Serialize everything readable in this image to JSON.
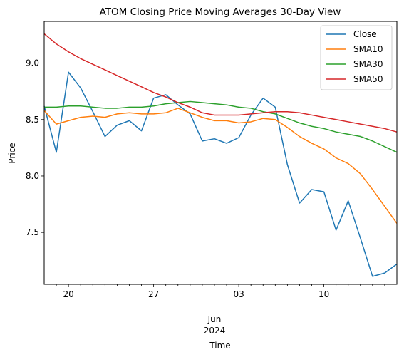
{
  "chart_data": {
    "type": "line",
    "title": "ATOM Closing Price Moving Averages 30-Day View",
    "xlabel": "Time",
    "ylabel": "Price",
    "x": [
      "2024-05-18",
      "2024-05-19",
      "2024-05-20",
      "2024-05-21",
      "2024-05-22",
      "2024-05-23",
      "2024-05-24",
      "2024-05-25",
      "2024-05-26",
      "2024-05-27",
      "2024-05-28",
      "2024-05-29",
      "2024-05-30",
      "2024-05-31",
      "2024-06-01",
      "2024-06-02",
      "2024-06-03",
      "2024-06-04",
      "2024-06-05",
      "2024-06-06",
      "2024-06-07",
      "2024-06-08",
      "2024-06-09",
      "2024-06-10",
      "2024-06-11",
      "2024-06-12",
      "2024-06-13",
      "2024-06-14",
      "2024-06-15",
      "2024-06-16"
    ],
    "xlim": [
      "2024-05-18",
      "2024-06-16"
    ],
    "ylim": [
      7.04,
      9.37
    ],
    "yticks": [
      7.5,
      8.0,
      8.5,
      9.0
    ],
    "ytick_labels": [
      "7.5",
      "8.0",
      "8.5",
      "9.0"
    ],
    "xticks_major": [
      {
        "date": "2024-05-20",
        "label": "20"
      },
      {
        "date": "2024-05-27",
        "label": "27"
      },
      {
        "date": "2024-06-03",
        "label": "03"
      },
      {
        "date": "2024-06-10",
        "label": "10"
      }
    ],
    "xticks_minor": [
      "2024-05-19",
      "2024-05-21",
      "2024-05-22",
      "2024-05-23",
      "2024-05-24",
      "2024-05-25",
      "2024-05-26",
      "2024-05-28",
      "2024-05-29",
      "2024-05-30",
      "2024-05-31",
      "2024-06-01",
      "2024-06-02",
      "2024-06-04",
      "2024-06-05",
      "2024-06-06",
      "2024-06-07",
      "2024-06-08",
      "2024-06-09",
      "2024-06-11",
      "2024-06-12",
      "2024-06-13",
      "2024-06-14",
      "2024-06-15"
    ],
    "x_secondary_label": [
      "Jun",
      "2024"
    ],
    "legend_position": "top-right",
    "grid": false,
    "series": [
      {
        "name": "Close",
        "color": "#1f77b4",
        "values": [
          8.62,
          8.21,
          8.92,
          8.78,
          8.57,
          8.35,
          8.45,
          8.49,
          8.4,
          8.69,
          8.72,
          8.63,
          8.55,
          8.31,
          8.33,
          8.29,
          8.34,
          8.54,
          8.69,
          8.61,
          8.1,
          7.76,
          7.88,
          7.86,
          7.52,
          7.78,
          7.45,
          7.11,
          7.14,
          7.22
        ]
      },
      {
        "name": "SMA10",
        "color": "#ff7f0e",
        "values": [
          8.58,
          8.46,
          8.49,
          8.52,
          8.53,
          8.52,
          8.55,
          8.56,
          8.55,
          8.55,
          8.56,
          8.6,
          8.56,
          8.52,
          8.49,
          8.49,
          8.47,
          8.48,
          8.51,
          8.5,
          8.43,
          8.35,
          8.29,
          8.24,
          8.16,
          8.11,
          8.02,
          7.88,
          7.73,
          7.58
        ]
      },
      {
        "name": "SMA30",
        "color": "#2ca02c",
        "values": [
          8.61,
          8.61,
          8.62,
          8.62,
          8.61,
          8.6,
          8.6,
          8.61,
          8.61,
          8.62,
          8.64,
          8.65,
          8.66,
          8.65,
          8.64,
          8.63,
          8.61,
          8.6,
          8.57,
          8.55,
          8.51,
          8.47,
          8.44,
          8.42,
          8.39,
          8.37,
          8.35,
          8.31,
          8.26,
          8.21
        ]
      },
      {
        "name": "SMA50",
        "color": "#d62728",
        "values": [
          9.26,
          9.17,
          9.1,
          9.04,
          8.99,
          8.94,
          8.89,
          8.84,
          8.79,
          8.74,
          8.7,
          8.65,
          8.61,
          8.56,
          8.54,
          8.54,
          8.54,
          8.55,
          8.56,
          8.57,
          8.57,
          8.56,
          8.54,
          8.52,
          8.5,
          8.48,
          8.46,
          8.44,
          8.42,
          8.39
        ]
      }
    ]
  }
}
